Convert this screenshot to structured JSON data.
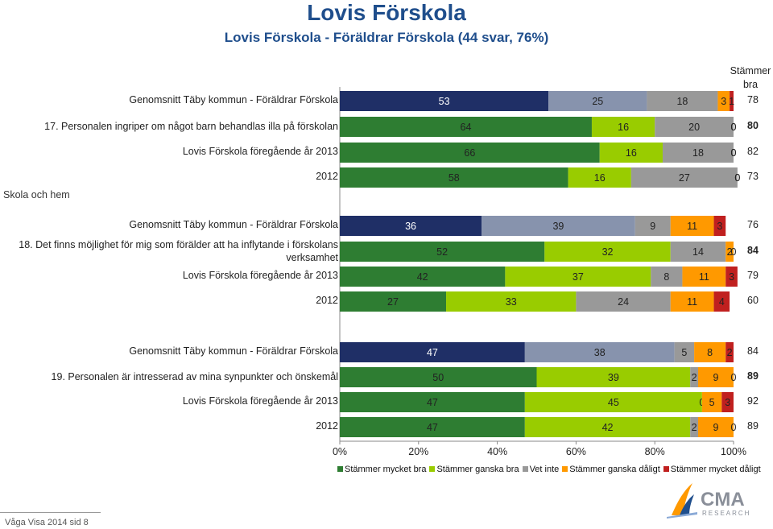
{
  "page": {
    "title": "Lovis Förskola",
    "subtitle": "Lovis Förskola - Föräldrar Förskola (44 svar, 76%)",
    "side_label": "Skola och hem",
    "right_header": "Stämmer bra",
    "footer": "Våga Visa 2014 sid 8",
    "logo_text": "CMA RESEARCH"
  },
  "colors": {
    "stammer_mycket_bra_default": "#2e7d32",
    "stammer_mycket_bra_compare": "#1f2f66",
    "stammer_ganska_bra_default": "#99cc00",
    "stammer_ganska_bra_compare": "#8793ad",
    "vet_inte": "#999999",
    "stammer_ganska_daligt": "#ff9900",
    "stammer_mycket_daligt": "#c0201f"
  },
  "chart_data": {
    "type": "bar",
    "orientation": "horizontal",
    "stacked": true,
    "xlim": [
      0,
      100
    ],
    "x_ticks": [
      "0%",
      "20%",
      "40%",
      "60%",
      "80%",
      "100%"
    ],
    "legend": [
      "Stämmer mycket bra",
      "Stämmer ganska bra",
      "Vet inte",
      "Stämmer ganska dåligt",
      "Stämmer mycket dåligt"
    ],
    "legend_position": "bottom",
    "groups": [
      {
        "question": "17. Personalen ingriper om något barn behandlas illa på förskolan",
        "rows": [
          {
            "label": "Genomsnitt Täby kommun - Föräldrar Förskola",
            "values": [
              53,
              25,
              18,
              3,
              1
            ],
            "stammer_bra": "78",
            "style": "compare"
          },
          {
            "label": "17. Personalen ingriper om något barn behandlas illa på förskolan",
            "values": [
              64,
              16,
              20,
              0,
              0
            ],
            "stammer_bra": "80",
            "style": "main"
          },
          {
            "label": "Lovis Förskola föregående år 2013",
            "values": [
              66,
              16,
              18,
              0,
              0
            ],
            "stammer_bra": "82",
            "style": "default"
          },
          {
            "label": "2012",
            "values": [
              58,
              16,
              27,
              0,
              0
            ],
            "stammer_bra": "73",
            "style": "default"
          }
        ]
      },
      {
        "question": "18. Det finns möjlighet för mig som förälder att ha inflytande i förskolans verksamhet",
        "rows": [
          {
            "label": "Genomsnitt Täby kommun - Föräldrar Förskola",
            "values": [
              36,
              39,
              9,
              11,
              3
            ],
            "stammer_bra": "76",
            "style": "compare"
          },
          {
            "label": "18. Det finns möjlighet för mig som förälder att ha inflytande i förskolans verksamhet",
            "values": [
              52,
              32,
              14,
              2,
              0
            ],
            "stammer_bra": "84",
            "style": "main"
          },
          {
            "label": "Lovis Förskola föregående år 2013",
            "values": [
              42,
              37,
              8,
              11,
              3
            ],
            "stammer_bra": "79",
            "style": "default"
          },
          {
            "label": "2012",
            "values": [
              27,
              33,
              24,
              11,
              4
            ],
            "stammer_bra": "60",
            "style": "default"
          }
        ]
      },
      {
        "question": "19. Personalen är intresserad av mina synpunkter och önskemål",
        "rows": [
          {
            "label": "Genomsnitt Täby kommun - Föräldrar Förskola",
            "values": [
              47,
              38,
              5,
              8,
              2
            ],
            "stammer_bra": "84",
            "style": "compare"
          },
          {
            "label": "19. Personalen är intresserad av mina synpunkter och önskemål",
            "values": [
              50,
              39,
              2,
              9,
              0
            ],
            "stammer_bra": "89",
            "style": "main"
          },
          {
            "label": "Lovis Förskola föregående år 2013",
            "values": [
              47,
              45,
              0,
              5,
              3
            ],
            "stammer_bra": "92",
            "style": "default"
          },
          {
            "label": "2012",
            "values": [
              47,
              42,
              2,
              9,
              0
            ],
            "stammer_bra": "89",
            "style": "default"
          }
        ]
      }
    ]
  }
}
